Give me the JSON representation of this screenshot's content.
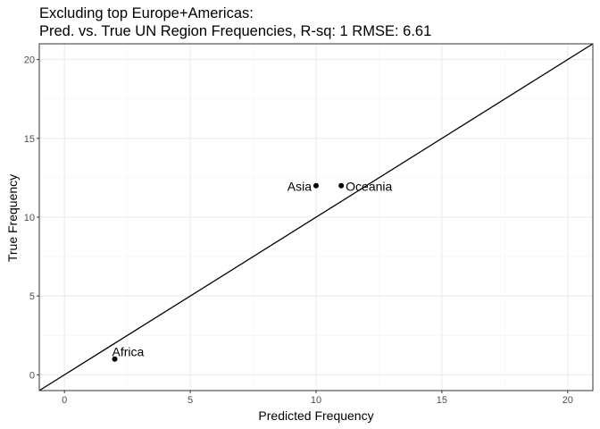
{
  "chart_data": {
    "type": "scatter",
    "title": "Excluding top Europe+Americas:",
    "subtitle": "Pred. vs. True  UN Region Frequencies, R-sq: 1 RMSE: 6.61",
    "xlabel": "Predicted Frequency",
    "ylabel": "True Frequency",
    "xlim": [
      -1,
      21
    ],
    "ylim": [
      -1,
      21
    ],
    "x_ticks": [
      "0",
      "5",
      "10",
      "15",
      "20"
    ],
    "y_ticks": [
      "0",
      "5",
      "10",
      "15",
      "20"
    ],
    "grid": true,
    "reference_line": "y = x",
    "points": [
      {
        "label": "Africa",
        "x": 2,
        "y": 1
      },
      {
        "label": "Asia",
        "x": 10,
        "y": 12
      },
      {
        "label": "Oceania",
        "x": 11,
        "y": 12
      }
    ],
    "colors": {
      "panel_border": "#333333",
      "grid_major": "#ebebeb",
      "grid_minor": "#f5f5f5",
      "point": "#000000",
      "line": "#000000"
    }
  }
}
